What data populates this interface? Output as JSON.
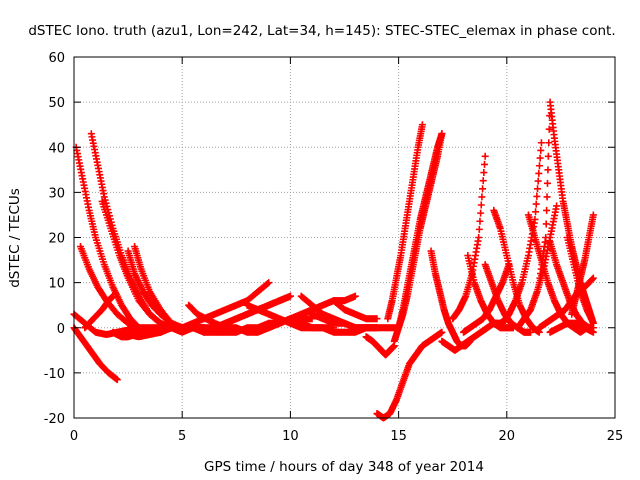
{
  "chart_data": {
    "type": "scatter",
    "title": "dSTEC Iono. truth (azu1, Lon=242, Lat=34, h=145): STEC-STEC_elemax in phase cont.",
    "xlabel": "GPS time / hours of day 348 of year 2014",
    "ylabel": "dSTEC  / TECUs",
    "xlim": [
      0,
      25
    ],
    "ylim": [
      -20,
      60
    ],
    "xticks": [
      "0",
      "5",
      "10",
      "15",
      "20",
      "25"
    ],
    "yticks": [
      "-20",
      "-10",
      "0",
      "10",
      "20",
      "30",
      "40",
      "50",
      "60"
    ],
    "grid": true,
    "legend": "none",
    "marker": "plus",
    "colors": {
      "series": "#ff0000",
      "grid": "#a0a0a0",
      "axes": "#000000"
    },
    "series": [
      {
        "x": [
          0.0,
          0.3,
          0.6,
          0.9,
          1.2,
          1.6,
          2.0
        ],
        "y": [
          0,
          -2,
          -4,
          -6,
          -8,
          -10,
          -11.5
        ]
      },
      {
        "x": [
          0.0,
          0.5,
          1.0,
          1.5,
          2.0,
          2.5,
          3.0,
          3.5,
          4.0,
          4.5,
          5.0
        ],
        "y": [
          3,
          1,
          -1,
          -1.5,
          -1,
          -0.5,
          0,
          0,
          0,
          0,
          0
        ]
      },
      {
        "x": [
          0.1,
          0.4,
          0.7,
          1.0,
          1.4,
          1.8,
          2.2,
          2.6,
          3.0,
          3.5,
          4.0,
          4.5,
          5.0
        ],
        "y": [
          40,
          33,
          26,
          20,
          14,
          9,
          5,
          2,
          0,
          -1,
          -1,
          0,
          0
        ]
      },
      {
        "x": [
          0.3,
          0.7,
          1.1,
          1.5,
          2.0,
          2.5,
          3.0,
          3.5,
          4.0,
          4.5,
          5.0,
          5.5
        ],
        "y": [
          18,
          13,
          9,
          6,
          3,
          1,
          0,
          -1,
          -1,
          0,
          0,
          0
        ]
      },
      {
        "x": [
          0.8,
          1.1,
          1.4,
          1.8,
          2.2,
          2.6,
          3.0,
          3.5,
          4.0,
          4.5,
          5.0,
          5.5,
          6.0
        ],
        "y": [
          43,
          36,
          29,
          22,
          16,
          11,
          7,
          3,
          1,
          0,
          0,
          0,
          0
        ]
      },
      {
        "x": [
          1.3,
          1.7,
          2.1,
          2.5,
          3.0,
          3.5,
          4.0,
          4.5,
          5.0,
          5.5,
          6.0
        ],
        "y": [
          28,
          22,
          16,
          11,
          6,
          3,
          1,
          0,
          -1,
          0,
          0
        ]
      },
      {
        "x": [
          0.5,
          0.9,
          1.3,
          1.6,
          1.8
        ],
        "y": [
          0,
          2,
          4,
          6,
          7
        ]
      },
      {
        "x": [
          2.5,
          2.8,
          3.2,
          3.6,
          4.0,
          4.5,
          5.0,
          5.5,
          6.0,
          6.5,
          7.0
        ],
        "y": [
          17,
          12,
          8,
          5,
          3,
          1,
          0,
          0,
          0,
          0,
          0
        ]
      },
      {
        "x": [
          2.8,
          3.1,
          3.5,
          4.0,
          4.5,
          5.0,
          5.5,
          6.0
        ],
        "y": [
          18,
          13,
          8,
          4,
          1,
          0,
          0,
          0
        ]
      },
      {
        "x": [
          1.8,
          2.0,
          2.2,
          2.5,
          2.8,
          3.0,
          3.3
        ],
        "y": [
          -1,
          -1.5,
          -2,
          -2,
          -1.5,
          -1,
          -0.5
        ]
      },
      {
        "x": [
          2.0,
          2.5,
          3.0,
          3.5,
          4.0
        ],
        "y": [
          -1,
          -1.5,
          -2,
          -1.5,
          -1
        ]
      },
      {
        "x": [
          5.0,
          5.5,
          6.0,
          6.5,
          7.0,
          7.5,
          8.0,
          8.5,
          9.0
        ],
        "y": [
          0,
          1,
          2,
          3,
          4,
          5,
          6,
          8,
          10
        ]
      },
      {
        "x": [
          5.3,
          5.7,
          6.1,
          6.5,
          7.0,
          7.5,
          8.0,
          8.5,
          9.0,
          9.5,
          10.0
        ],
        "y": [
          5,
          3,
          2,
          1,
          0,
          0,
          -1,
          -1,
          0,
          1,
          2
        ]
      },
      {
        "x": [
          6.0,
          6.5,
          7.0,
          7.5,
          8.0,
          8.5,
          9.0,
          9.5,
          10.0
        ],
        "y": [
          -1,
          0,
          1,
          2,
          3,
          4,
          5,
          6,
          7
        ]
      },
      {
        "x": [
          5.0,
          5.5,
          6.0,
          6.5,
          7.0,
          7.5,
          8.0,
          8.5,
          9.0,
          9.5,
          10.0,
          10.5,
          11.0
        ],
        "y": [
          0,
          0,
          -1,
          -1,
          -1,
          -1,
          0,
          0,
          1,
          1,
          2,
          2,
          2
        ]
      },
      {
        "x": [
          6.5,
          7.0,
          7.5,
          8.0,
          8.5,
          9.0,
          9.5,
          10.0
        ],
        "y": [
          0,
          1,
          2,
          3,
          4,
          5,
          6,
          7
        ]
      },
      {
        "x": [
          8.0,
          8.5,
          9.0,
          9.5,
          10.0,
          10.5,
          11.0,
          11.5,
          12.0
        ],
        "y": [
          5,
          4,
          3,
          2,
          1,
          0,
          0,
          0,
          0
        ]
      },
      {
        "x": [
          9.0,
          9.5,
          10.0,
          10.5,
          11.0,
          11.5,
          12.0,
          12.5,
          13.0
        ],
        "y": [
          0,
          1,
          2,
          3,
          4,
          5,
          6,
          6,
          7
        ]
      },
      {
        "x": [
          10.5,
          11.0,
          11.5,
          12.0,
          12.5,
          13.0,
          13.5,
          14.0
        ],
        "y": [
          7,
          5,
          3,
          2,
          1,
          0,
          0,
          0
        ]
      },
      {
        "x": [
          11.0,
          11.5,
          12.0,
          12.5,
          13.0,
          13.5,
          14.0
        ],
        "y": [
          3,
          2,
          1,
          1,
          0,
          0,
          0
        ]
      },
      {
        "x": [
          12.0,
          12.5,
          13.0,
          13.5,
          14.0
        ],
        "y": [
          6,
          4,
          3,
          2,
          2
        ]
      },
      {
        "x": [
          10.0,
          10.5,
          11.0,
          11.5,
          12.0,
          12.5,
          13.0,
          13.5,
          14.0,
          14.5,
          15.0
        ],
        "y": [
          1,
          1,
          0,
          0,
          -1,
          -1,
          -1,
          0,
          0,
          0,
          0
        ]
      },
      {
        "x": [
          13.5,
          13.8,
          14.0,
          14.2,
          14.4,
          14.6,
          14.8
        ],
        "y": [
          -2,
          -3,
          -4,
          -5,
          -6,
          -5,
          -4
        ]
      },
      {
        "x": [
          14.0,
          14.3,
          14.6,
          14.9,
          15.2,
          15.5,
          15.8,
          16.1,
          16.4,
          16.7,
          17.0
        ],
        "y": [
          -19,
          -20,
          -19,
          -16,
          -12,
          -8,
          -6,
          -4,
          -3,
          -2,
          -1
        ]
      },
      {
        "x": [
          14.5,
          14.7,
          14.9,
          15.1,
          15.3,
          15.5,
          15.7,
          15.9,
          16.1
        ],
        "y": [
          2,
          6,
          11,
          16,
          22,
          28,
          34,
          40,
          45
        ]
      },
      {
        "x": [
          14.8,
          15.0,
          15.2,
          15.4,
          15.6,
          15.8,
          16.0,
          16.2,
          16.4,
          16.6,
          16.8,
          17.0
        ],
        "y": [
          -3,
          0,
          4,
          9,
          14,
          19,
          24,
          28,
          32,
          36,
          40,
          43
        ]
      },
      {
        "x": [
          15.0,
          15.2,
          15.4,
          15.6,
          15.8,
          16.0,
          16.2,
          16.4,
          16.6,
          16.8,
          17.0
        ],
        "y": [
          0,
          3,
          7,
          12,
          17,
          22,
          26,
          30,
          34,
          38,
          43
        ]
      },
      {
        "x": [
          16.5,
          16.7,
          16.9,
          17.1,
          17.3,
          17.5,
          17.7,
          17.9,
          18.1,
          18.3
        ],
        "y": [
          17,
          12,
          8,
          4,
          1,
          -1,
          -3,
          -4,
          -4,
          -3
        ]
      },
      {
        "x": [
          17.0,
          17.3,
          17.6,
          17.9,
          18.2,
          18.5,
          18.8,
          19.1,
          19.4,
          19.7,
          20.0
        ],
        "y": [
          -3,
          -4,
          -5,
          -4,
          -3,
          -2,
          -1,
          0,
          1,
          1,
          2
        ]
      },
      {
        "x": [
          17.5,
          17.8,
          18.1,
          18.4,
          18.7,
          19.0
        ],
        "y": [
          2,
          4,
          7,
          12,
          20,
          38
        ]
      },
      {
        "x": [
          18.2,
          18.5,
          18.8,
          19.1,
          19.4,
          19.7,
          20.0,
          20.3
        ],
        "y": [
          16,
          10,
          6,
          3,
          1,
          0,
          0,
          0
        ]
      },
      {
        "x": [
          18.0,
          18.3,
          18.6,
          18.9,
          19.2,
          19.5,
          19.8,
          20.1
        ],
        "y": [
          -1,
          0,
          1,
          2,
          4,
          7,
          10,
          14
        ]
      },
      {
        "x": [
          19.0,
          19.3,
          19.6,
          19.9,
          20.2,
          20.5,
          20.8,
          21.1
        ],
        "y": [
          14,
          10,
          6,
          3,
          1,
          0,
          -1,
          -1
        ]
      },
      {
        "x": [
          19.4,
          19.7,
          20.0,
          20.3,
          20.6,
          20.9,
          21.2,
          21.5
        ],
        "y": [
          26,
          22,
          16,
          10,
          5,
          2,
          0,
          -1
        ]
      },
      {
        "x": [
          19.8,
          20.1,
          20.4,
          20.7,
          21.0,
          21.3,
          21.6
        ],
        "y": [
          1,
          3,
          6,
          10,
          16,
          24,
          41
        ]
      },
      {
        "x": [
          20.5,
          20.8,
          21.1,
          21.4,
          21.7,
          22.0,
          22.3
        ],
        "y": [
          0,
          2,
          4,
          8,
          13,
          20,
          27
        ]
      },
      {
        "x": [
          21.0,
          21.3,
          21.6,
          21.9,
          22.2,
          22.5,
          22.8,
          23.1,
          23.4,
          23.7,
          24.0
        ],
        "y": [
          25,
          20,
          15,
          10,
          6,
          3,
          1,
          0,
          -1,
          0,
          0
        ]
      },
      {
        "x": [
          21.5,
          21.8,
          22.0,
          22.2,
          22.4,
          22.6,
          22.8,
          23.0,
          23.2,
          23.4,
          23.6,
          23.8,
          24.0
        ],
        "y": [
          10,
          20,
          50,
          42,
          35,
          28,
          23,
          18,
          14,
          10,
          7,
          4,
          1
        ]
      },
      {
        "x": [
          22.0,
          22.3,
          22.6,
          22.9,
          23.2,
          23.5,
          23.8,
          24.0
        ],
        "y": [
          19,
          14,
          10,
          6,
          3,
          1,
          0,
          0
        ]
      },
      {
        "x": [
          22.8,
          23.1,
          23.4,
          23.7,
          24.0
        ],
        "y": [
          20,
          14,
          8,
          4,
          1
        ]
      },
      {
        "x": [
          21.5,
          21.8,
          22.1,
          22.4,
          22.7,
          23.0,
          23.3,
          23.6,
          24.0
        ],
        "y": [
          0,
          1,
          2,
          3,
          4,
          6,
          8,
          9,
          11
        ]
      },
      {
        "x": [
          23.0,
          23.2,
          23.4,
          23.6,
          23.8,
          24.0
        ],
        "y": [
          3,
          7,
          11,
          15,
          20,
          25
        ]
      },
      {
        "x": [
          22.0,
          22.4,
          22.8,
          23.2,
          23.6,
          24.0
        ],
        "y": [
          -1,
          0,
          1,
          1,
          0,
          -1
        ]
      }
    ]
  }
}
